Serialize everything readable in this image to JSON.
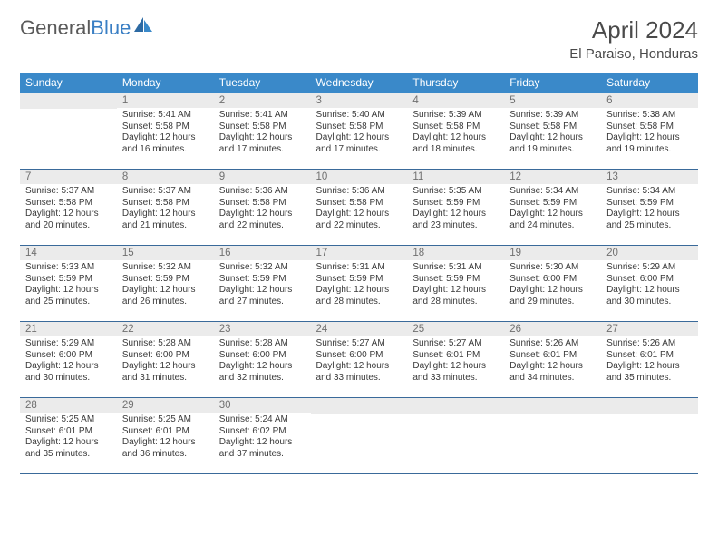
{
  "logo": {
    "word1": "General",
    "word2": "Blue"
  },
  "header": {
    "title": "April 2024",
    "location": "El Paraiso, Honduras"
  },
  "colors": {
    "header_bg": "#3a89c9",
    "header_text": "#ffffff",
    "row_border": "#3a6a9a",
    "daynum_bg": "#ebebeb",
    "daynum_text": "#707070",
    "body_text": "#3a3a3a",
    "logo_gray": "#5a5a5a",
    "logo_blue": "#3a7fc4"
  },
  "day_names": [
    "Sunday",
    "Monday",
    "Tuesday",
    "Wednesday",
    "Thursday",
    "Friday",
    "Saturday"
  ],
  "weeks": [
    [
      {
        "n": "",
        "sr": "",
        "ss": "",
        "dl1": "",
        "dl2": ""
      },
      {
        "n": "1",
        "sr": "Sunrise: 5:41 AM",
        "ss": "Sunset: 5:58 PM",
        "dl1": "Daylight: 12 hours",
        "dl2": "and 16 minutes."
      },
      {
        "n": "2",
        "sr": "Sunrise: 5:41 AM",
        "ss": "Sunset: 5:58 PM",
        "dl1": "Daylight: 12 hours",
        "dl2": "and 17 minutes."
      },
      {
        "n": "3",
        "sr": "Sunrise: 5:40 AM",
        "ss": "Sunset: 5:58 PM",
        "dl1": "Daylight: 12 hours",
        "dl2": "and 17 minutes."
      },
      {
        "n": "4",
        "sr": "Sunrise: 5:39 AM",
        "ss": "Sunset: 5:58 PM",
        "dl1": "Daylight: 12 hours",
        "dl2": "and 18 minutes."
      },
      {
        "n": "5",
        "sr": "Sunrise: 5:39 AM",
        "ss": "Sunset: 5:58 PM",
        "dl1": "Daylight: 12 hours",
        "dl2": "and 19 minutes."
      },
      {
        "n": "6",
        "sr": "Sunrise: 5:38 AM",
        "ss": "Sunset: 5:58 PM",
        "dl1": "Daylight: 12 hours",
        "dl2": "and 19 minutes."
      }
    ],
    [
      {
        "n": "7",
        "sr": "Sunrise: 5:37 AM",
        "ss": "Sunset: 5:58 PM",
        "dl1": "Daylight: 12 hours",
        "dl2": "and 20 minutes."
      },
      {
        "n": "8",
        "sr": "Sunrise: 5:37 AM",
        "ss": "Sunset: 5:58 PM",
        "dl1": "Daylight: 12 hours",
        "dl2": "and 21 minutes."
      },
      {
        "n": "9",
        "sr": "Sunrise: 5:36 AM",
        "ss": "Sunset: 5:58 PM",
        "dl1": "Daylight: 12 hours",
        "dl2": "and 22 minutes."
      },
      {
        "n": "10",
        "sr": "Sunrise: 5:36 AM",
        "ss": "Sunset: 5:58 PM",
        "dl1": "Daylight: 12 hours",
        "dl2": "and 22 minutes."
      },
      {
        "n": "11",
        "sr": "Sunrise: 5:35 AM",
        "ss": "Sunset: 5:59 PM",
        "dl1": "Daylight: 12 hours",
        "dl2": "and 23 minutes."
      },
      {
        "n": "12",
        "sr": "Sunrise: 5:34 AM",
        "ss": "Sunset: 5:59 PM",
        "dl1": "Daylight: 12 hours",
        "dl2": "and 24 minutes."
      },
      {
        "n": "13",
        "sr": "Sunrise: 5:34 AM",
        "ss": "Sunset: 5:59 PM",
        "dl1": "Daylight: 12 hours",
        "dl2": "and 25 minutes."
      }
    ],
    [
      {
        "n": "14",
        "sr": "Sunrise: 5:33 AM",
        "ss": "Sunset: 5:59 PM",
        "dl1": "Daylight: 12 hours",
        "dl2": "and 25 minutes."
      },
      {
        "n": "15",
        "sr": "Sunrise: 5:32 AM",
        "ss": "Sunset: 5:59 PM",
        "dl1": "Daylight: 12 hours",
        "dl2": "and 26 minutes."
      },
      {
        "n": "16",
        "sr": "Sunrise: 5:32 AM",
        "ss": "Sunset: 5:59 PM",
        "dl1": "Daylight: 12 hours",
        "dl2": "and 27 minutes."
      },
      {
        "n": "17",
        "sr": "Sunrise: 5:31 AM",
        "ss": "Sunset: 5:59 PM",
        "dl1": "Daylight: 12 hours",
        "dl2": "and 28 minutes."
      },
      {
        "n": "18",
        "sr": "Sunrise: 5:31 AM",
        "ss": "Sunset: 5:59 PM",
        "dl1": "Daylight: 12 hours",
        "dl2": "and 28 minutes."
      },
      {
        "n": "19",
        "sr": "Sunrise: 5:30 AM",
        "ss": "Sunset: 6:00 PM",
        "dl1": "Daylight: 12 hours",
        "dl2": "and 29 minutes."
      },
      {
        "n": "20",
        "sr": "Sunrise: 5:29 AM",
        "ss": "Sunset: 6:00 PM",
        "dl1": "Daylight: 12 hours",
        "dl2": "and 30 minutes."
      }
    ],
    [
      {
        "n": "21",
        "sr": "Sunrise: 5:29 AM",
        "ss": "Sunset: 6:00 PM",
        "dl1": "Daylight: 12 hours",
        "dl2": "and 30 minutes."
      },
      {
        "n": "22",
        "sr": "Sunrise: 5:28 AM",
        "ss": "Sunset: 6:00 PM",
        "dl1": "Daylight: 12 hours",
        "dl2": "and 31 minutes."
      },
      {
        "n": "23",
        "sr": "Sunrise: 5:28 AM",
        "ss": "Sunset: 6:00 PM",
        "dl1": "Daylight: 12 hours",
        "dl2": "and 32 minutes."
      },
      {
        "n": "24",
        "sr": "Sunrise: 5:27 AM",
        "ss": "Sunset: 6:00 PM",
        "dl1": "Daylight: 12 hours",
        "dl2": "and 33 minutes."
      },
      {
        "n": "25",
        "sr": "Sunrise: 5:27 AM",
        "ss": "Sunset: 6:01 PM",
        "dl1": "Daylight: 12 hours",
        "dl2": "and 33 minutes."
      },
      {
        "n": "26",
        "sr": "Sunrise: 5:26 AM",
        "ss": "Sunset: 6:01 PM",
        "dl1": "Daylight: 12 hours",
        "dl2": "and 34 minutes."
      },
      {
        "n": "27",
        "sr": "Sunrise: 5:26 AM",
        "ss": "Sunset: 6:01 PM",
        "dl1": "Daylight: 12 hours",
        "dl2": "and 35 minutes."
      }
    ],
    [
      {
        "n": "28",
        "sr": "Sunrise: 5:25 AM",
        "ss": "Sunset: 6:01 PM",
        "dl1": "Daylight: 12 hours",
        "dl2": "and 35 minutes."
      },
      {
        "n": "29",
        "sr": "Sunrise: 5:25 AM",
        "ss": "Sunset: 6:01 PM",
        "dl1": "Daylight: 12 hours",
        "dl2": "and 36 minutes."
      },
      {
        "n": "30",
        "sr": "Sunrise: 5:24 AM",
        "ss": "Sunset: 6:02 PM",
        "dl1": "Daylight: 12 hours",
        "dl2": "and 37 minutes."
      },
      {
        "n": "",
        "sr": "",
        "ss": "",
        "dl1": "",
        "dl2": ""
      },
      {
        "n": "",
        "sr": "",
        "ss": "",
        "dl1": "",
        "dl2": ""
      },
      {
        "n": "",
        "sr": "",
        "ss": "",
        "dl1": "",
        "dl2": ""
      },
      {
        "n": "",
        "sr": "",
        "ss": "",
        "dl1": "",
        "dl2": ""
      }
    ]
  ]
}
